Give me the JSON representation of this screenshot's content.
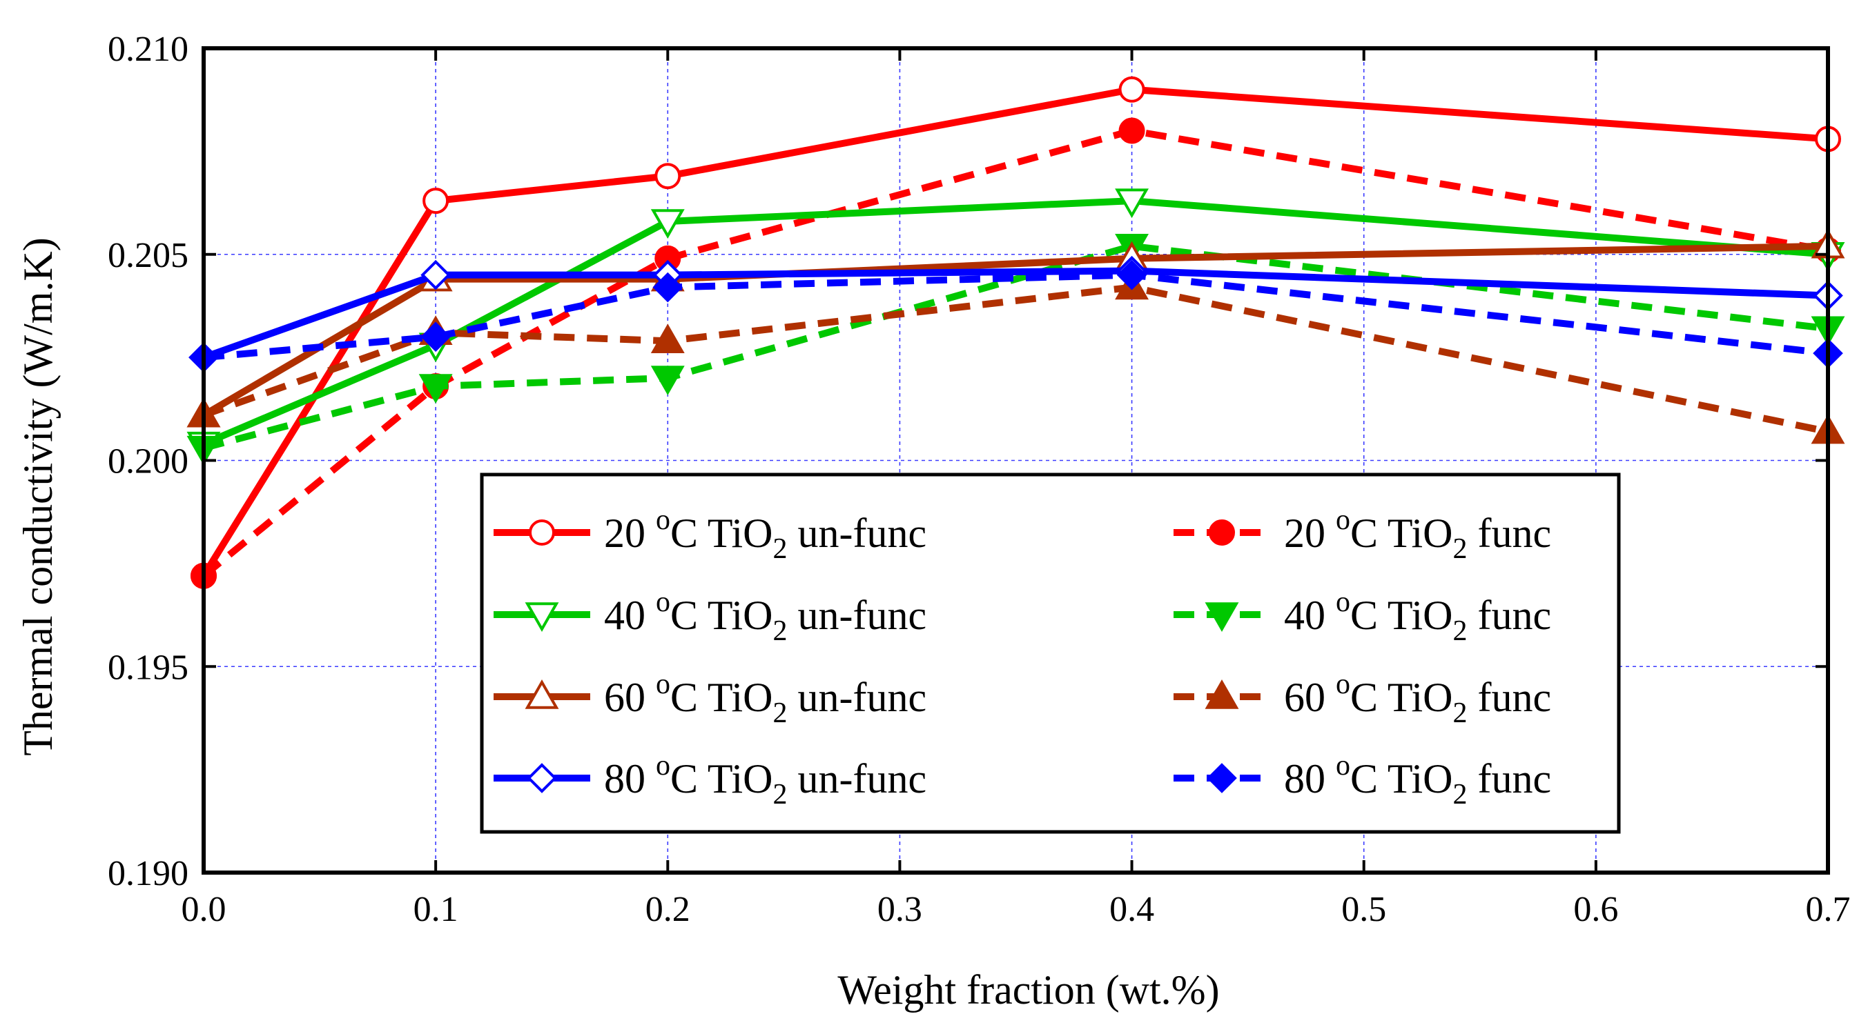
{
  "chart_data": {
    "type": "line",
    "title": "",
    "xlabel": "Weight fraction (wt.%)",
    "ylabel": "Thermal conductivity (W/m.K)",
    "xlim": [
      0.0,
      0.7
    ],
    "ylim": [
      0.19,
      0.21
    ],
    "xticks": [
      "0.0",
      "0.1",
      "0.2",
      "0.3",
      "0.4",
      "0.5",
      "0.6",
      "0.7"
    ],
    "yticks": [
      "0.190",
      "0.195",
      "0.200",
      "0.205",
      "0.210"
    ],
    "grid": true,
    "legend_position": "bottom-center",
    "x": [
      0.0,
      0.1,
      0.2,
      0.4,
      0.7
    ],
    "series": [
      {
        "name": "20 oC TiO2 un-func",
        "temp": "20",
        "kind": "un-func",
        "color": "#ff0000",
        "style": "solid",
        "marker": "circle",
        "filled": false,
        "values": [
          0.1972,
          0.2063,
          0.2069,
          0.209,
          0.2078
        ]
      },
      {
        "name": "20 oC TiO2 func",
        "temp": "20",
        "kind": "func",
        "color": "#ff0000",
        "style": "dashed",
        "marker": "circle",
        "filled": true,
        "values": [
          0.1972,
          0.2018,
          0.2049,
          0.208,
          0.2051
        ]
      },
      {
        "name": "40 oC TiO2 un-func",
        "temp": "40",
        "kind": "un-func",
        "color": "#00c800",
        "style": "solid",
        "marker": "triangle-down",
        "filled": false,
        "values": [
          0.2004,
          0.2028,
          0.2058,
          0.2063,
          0.205
        ]
      },
      {
        "name": "40 oC TiO2 func",
        "temp": "40",
        "kind": "func",
        "color": "#00c800",
        "style": "dashed",
        "marker": "triangle-down",
        "filled": true,
        "values": [
          0.2003,
          0.2018,
          0.202,
          0.2052,
          0.2032
        ]
      },
      {
        "name": "60 oC TiO2 un-func",
        "temp": "60",
        "kind": "un-func",
        "color": "#b03000",
        "style": "solid",
        "marker": "triangle-up",
        "filled": false,
        "values": [
          0.2011,
          0.2044,
          0.2044,
          0.2049,
          0.2052
        ]
      },
      {
        "name": "60 oC TiO2 func",
        "temp": "60",
        "kind": "func",
        "color": "#b03000",
        "style": "dashed",
        "marker": "triangle-up",
        "filled": true,
        "values": [
          0.2011,
          0.2031,
          0.2029,
          0.2042,
          0.2007
        ]
      },
      {
        "name": "80 oC TiO2 un-func",
        "temp": "80",
        "kind": "un-func",
        "color": "#0000ff",
        "style": "solid",
        "marker": "diamond",
        "filled": false,
        "values": [
          0.2025,
          0.2045,
          0.2045,
          0.2046,
          0.204
        ]
      },
      {
        "name": "80 oC TiO2 func",
        "temp": "80",
        "kind": "func",
        "color": "#0000ff",
        "style": "dashed",
        "marker": "diamond",
        "filled": true,
        "values": [
          0.2025,
          0.203,
          0.2042,
          0.2045,
          0.2026
        ]
      }
    ],
    "legend_text": {
      "unit_sup": "o",
      "unit_letter": "C",
      "compound_base": "TiO",
      "compound_sub": "2",
      "unfunc_label": "un-func",
      "func_label": "func"
    }
  }
}
